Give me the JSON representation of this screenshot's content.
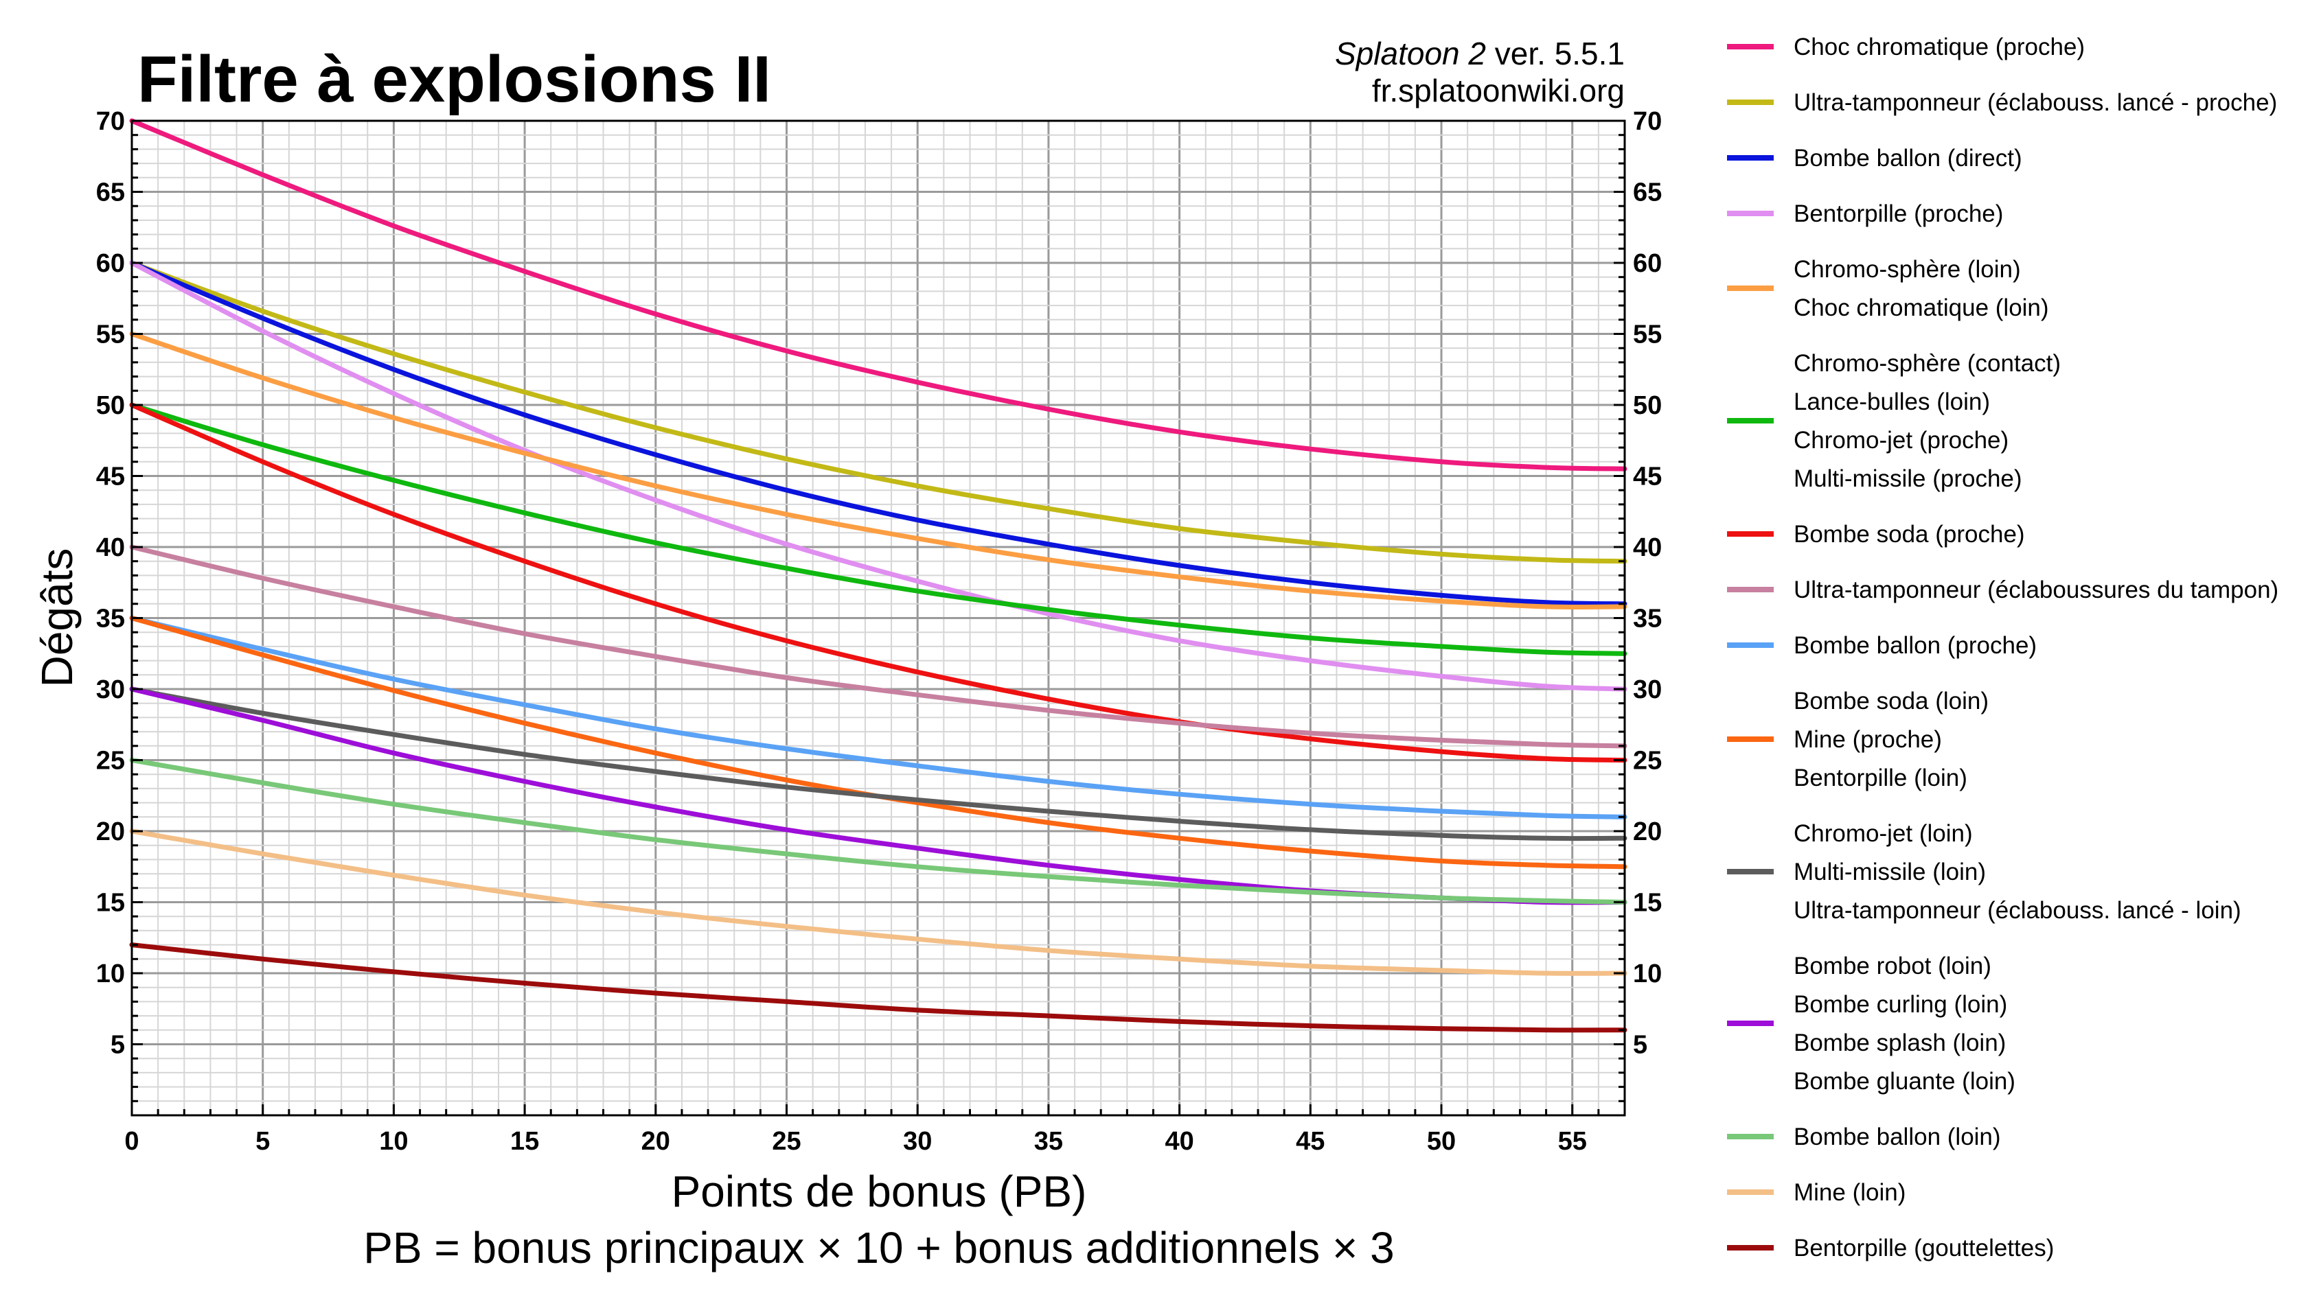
{
  "chart_data": {
    "type": "line",
    "title": "Filtre à explosions II",
    "credit_game": "Splatoon 2",
    "credit_version": " ver. 5.5.1",
    "credit_site": "fr.splatoonwiki.org",
    "xlabel": "Points de bonus (PB)",
    "xlabel_note": "PB = bonus principaux × 10 + bonus additionnels × 3",
    "ylabel": "Dégâts",
    "xlim": [
      0,
      57
    ],
    "ylim": [
      0,
      70
    ],
    "x_ticks": [
      0,
      5,
      10,
      15,
      20,
      25,
      30,
      35,
      40,
      45,
      50,
      55
    ],
    "y_ticks": [
      5,
      10,
      15,
      20,
      25,
      30,
      35,
      40,
      45,
      50,
      55,
      60,
      65,
      70
    ],
    "x": [
      0,
      5,
      10,
      15,
      20,
      25,
      30,
      35,
      40,
      45,
      50,
      54,
      57
    ],
    "grid": true,
    "legend_position": "right",
    "series": [
      {
        "color": "#ee1a7d",
        "labels": [
          "Choc chromatique (proche)"
        ],
        "values": [
          70,
          66.2,
          62.6,
          59.4,
          56.4,
          53.8,
          51.6,
          49.7,
          48.1,
          46.9,
          46.0,
          45.6,
          45.5
        ]
      },
      {
        "color": "#c2b917",
        "labels": [
          "Ultra-tamponneur (éclabouss. lancé - proche)"
        ],
        "values": [
          60,
          56.6,
          53.6,
          50.9,
          48.4,
          46.2,
          44.3,
          42.7,
          41.3,
          40.3,
          39.5,
          39.1,
          39.0
        ]
      },
      {
        "color": "#0a14dc",
        "labels": [
          "Bombe ballon (direct)"
        ],
        "values": [
          60,
          56.1,
          52.5,
          49.3,
          46.5,
          44.0,
          41.9,
          40.2,
          38.7,
          37.5,
          36.6,
          36.1,
          36.0
        ]
      },
      {
        "color": "#e08ef0",
        "labels": [
          "Bentorpille (proche)"
        ],
        "values": [
          60,
          55.2,
          50.8,
          46.8,
          43.3,
          40.2,
          37.6,
          35.3,
          33.4,
          32.0,
          30.9,
          30.2,
          30.0
        ]
      },
      {
        "color": "#fb9e43",
        "labels": [
          "Chromo-sphère (loin)",
          "Choc chromatique (loin)"
        ],
        "values": [
          55,
          51.9,
          49.1,
          46.6,
          44.3,
          42.3,
          40.6,
          39.1,
          37.9,
          36.9,
          36.2,
          35.8,
          35.8
        ]
      },
      {
        "color": "#0fb80f",
        "labels": [
          "Chromo-sphère (contact)",
          "Lance-bulles (loin)",
          "Chromo-jet (proche)",
          "Multi-missile (proche)"
        ],
        "values": [
          50,
          47.2,
          44.7,
          42.4,
          40.3,
          38.5,
          36.9,
          35.6,
          34.5,
          33.6,
          33.0,
          32.6,
          32.5
        ]
      },
      {
        "color": "#ee1111",
        "labels": [
          "Bombe soda (proche)"
        ],
        "values": [
          50,
          46.0,
          42.3,
          39.0,
          36.0,
          33.4,
          31.2,
          29.3,
          27.7,
          26.5,
          25.6,
          25.1,
          25.0
        ]
      },
      {
        "color": "#c7809f",
        "labels": [
          "Ultra-tamponneur (éclaboussures du tampon)"
        ],
        "values": [
          40,
          37.8,
          35.8,
          33.9,
          32.3,
          30.8,
          29.6,
          28.5,
          27.6,
          26.9,
          26.4,
          26.1,
          26.0
        ]
      },
      {
        "color": "#5aa2f5",
        "labels": [
          "Bombe ballon (proche)"
        ],
        "values": [
          35,
          32.8,
          30.7,
          28.9,
          27.2,
          25.8,
          24.6,
          23.5,
          22.6,
          21.9,
          21.4,
          21.1,
          21.0
        ]
      },
      {
        "color": "#fb6612",
        "labels": [
          "Bombe soda (loin)",
          "Mine (proche)",
          "Bentorpille (loin)"
        ],
        "values": [
          35,
          32.4,
          29.9,
          27.6,
          25.5,
          23.6,
          22.0,
          20.6,
          19.5,
          18.6,
          17.9,
          17.6,
          17.5
        ]
      },
      {
        "color": "#5c5c5c",
        "labels": [
          "Chromo-jet (loin)",
          "Multi-missile (loin)",
          "Ultra-tamponneur (éclabouss. lancé - loin)"
        ],
        "values": [
          30,
          28.3,
          26.8,
          25.4,
          24.2,
          23.1,
          22.2,
          21.4,
          20.7,
          20.1,
          19.7,
          19.5,
          19.5
        ]
      },
      {
        "color": "#9d0ed8",
        "labels": [
          "Bombe robot (loin)",
          "Bombe curling (loin)",
          "Bombe splash (loin)",
          "Bombe gluante (loin)"
        ],
        "values": [
          30,
          27.8,
          25.5,
          23.5,
          21.7,
          20.1,
          18.8,
          17.6,
          16.6,
          15.8,
          15.3,
          15.0,
          15.0
        ]
      },
      {
        "color": "#78c878",
        "labels": [
          "Bombe ballon (loin)"
        ],
        "values": [
          25,
          23.4,
          21.9,
          20.6,
          19.4,
          18.4,
          17.5,
          16.8,
          16.2,
          15.7,
          15.3,
          15.1,
          15.0
        ]
      },
      {
        "color": "#f3bf87",
        "labels": [
          "Mine (loin)"
        ],
        "values": [
          20,
          18.4,
          16.9,
          15.5,
          14.3,
          13.3,
          12.4,
          11.6,
          11.0,
          10.5,
          10.2,
          10.0,
          10.0
        ]
      },
      {
        "color": "#9c0b0b",
        "labels": [
          "Bentorpille (gouttelettes)"
        ],
        "values": [
          12,
          11.0,
          10.1,
          9.3,
          8.6,
          8.0,
          7.4,
          7.0,
          6.6,
          6.3,
          6.1,
          6.0,
          6.0
        ]
      }
    ]
  }
}
